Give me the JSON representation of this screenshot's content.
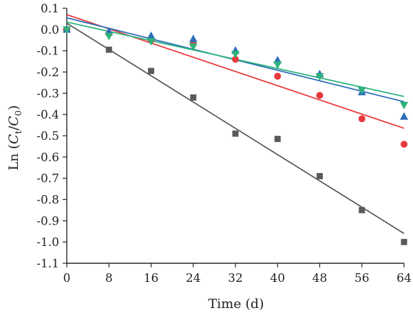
{
  "chart_data": {
    "type": "scatter",
    "xlabel": "Time (d)",
    "ylabel": {
      "prefix": "Ln (",
      "c1": "C",
      "sub1": "t",
      "slash": "/",
      "c2": "C",
      "sub2": "0",
      "suffix": ")"
    },
    "xlim": [
      0,
      64
    ],
    "ylim": [
      -1.1,
      0.1
    ],
    "xticks": [
      "0",
      "8",
      "16",
      "24",
      "32",
      "40",
      "48",
      "56",
      "64"
    ],
    "yticks": [
      "0.1",
      "0.0",
      "-0.1",
      "-0.2",
      "-0.3",
      "-0.4",
      "-0.5",
      "-0.6",
      "-0.7",
      "-0.8",
      "-0.9",
      "-1.0",
      "-1.1"
    ],
    "grid": false,
    "legend": "none",
    "x": [
      0,
      8,
      16,
      24,
      32,
      40,
      48,
      56,
      64
    ],
    "series": [
      {
        "marker": "square",
        "color": "#5a5a5a",
        "values": [
          0.0,
          -0.095,
          -0.195,
          -0.32,
          -0.49,
          -0.515,
          -0.69,
          -0.85,
          -1.0
        ],
        "fit": [
          0.03,
          -0.96
        ]
      },
      {
        "marker": "circle",
        "color": "#e8383c",
        "values": [
          0.0,
          -0.02,
          -0.05,
          -0.07,
          -0.14,
          -0.22,
          -0.31,
          -0.42,
          -0.54
        ],
        "fit": [
          0.07,
          -0.465
        ]
      },
      {
        "marker": "triangle-up",
        "color": "#2e6fb8",
        "values": [
          0.0,
          -0.01,
          -0.03,
          -0.045,
          -0.1,
          -0.145,
          -0.21,
          -0.295,
          -0.41
        ],
        "fit": [
          0.055,
          -0.34
        ]
      },
      {
        "marker": "triangle-down",
        "color": "#2db37a",
        "values": [
          0.0,
          -0.03,
          -0.055,
          -0.08,
          -0.115,
          -0.165,
          -0.22,
          -0.285,
          -0.355
        ],
        "fit": [
          0.035,
          -0.315
        ]
      }
    ]
  }
}
